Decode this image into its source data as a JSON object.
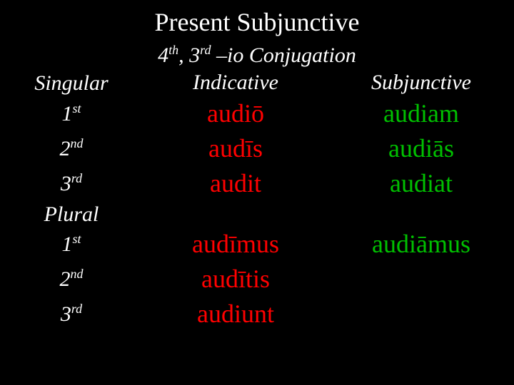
{
  "colors": {
    "background": "#000000",
    "title": "#ffffff",
    "labels": "#ffffff",
    "indicative": "#ff0000",
    "subjunctive": "#00c000"
  },
  "typography": {
    "title_fontsize": 36,
    "subtitle_fontsize": 30,
    "label_fontsize": 30,
    "cell_fontsize": 36,
    "font_family": "Book Antiqua / Palatino, serif"
  },
  "title": "Present Subjunctive",
  "subtitle_parts": {
    "p1": "4",
    "sup1": "th",
    "p2": ", 3",
    "sup2": "rd",
    "p3": " –io Conjugation"
  },
  "headers": {
    "col1_blank": "",
    "indicative": "Indicative",
    "subjunctive": "Subjunctive"
  },
  "numbers": {
    "singular": "Singular",
    "plural": "Plural"
  },
  "persons": {
    "p1_num": "1",
    "p1_sup": "st",
    "p2_num": "2",
    "p2_sup": "nd",
    "p3_num": "3",
    "p3_sup": "rd"
  },
  "singular": {
    "indicative": [
      "audiō",
      "audīs",
      "audit"
    ],
    "subjunctive": [
      "audiam",
      "audiās",
      "audiat"
    ]
  },
  "plural": {
    "indicative": [
      "audīmus",
      "audītis",
      "audiunt"
    ],
    "subjunctive": [
      "audiāmus",
      "",
      ""
    ]
  }
}
